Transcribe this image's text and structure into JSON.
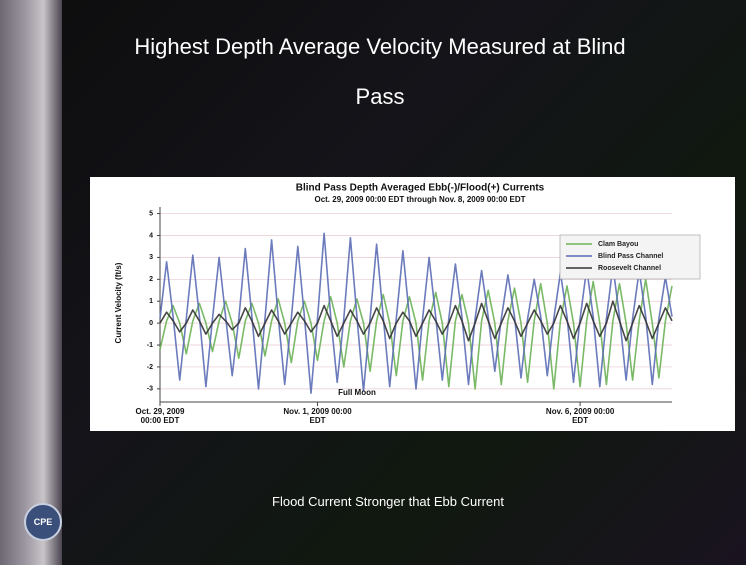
{
  "slide": {
    "title": "Highest Depth Average Velocity Measured at Blind Pass",
    "caption": "Flood  Current Stronger that Ebb Current",
    "logo": "CPE"
  },
  "chart_data": {
    "type": "line",
    "title": "Blind Pass Depth Averaged Ebb(-)/Flood(+) Currents",
    "subtitle": "Oct. 29, 2009 00:00 EDT through Nov. 8, 2009 00:00 EDT",
    "y_label": "Current Velocity (ft/s)",
    "annotation": "Full Moon",
    "grid": true,
    "legend": "upper right",
    "xlim": [
      0,
      9.75
    ],
    "ylim": [
      -3.6,
      5.3
    ],
    "xticks": [
      {
        "value": 0,
        "label": "Oct. 29, 2009 00:00 EDT"
      },
      {
        "value": 3,
        "label": "Nov. 1, 2009 00:00 EDT"
      },
      {
        "value": 8,
        "label": "Nov. 6, 2009 00:00 EDT"
      }
    ],
    "yticks": [
      -3,
      -2,
      -1,
      0,
      1,
      2,
      3,
      4,
      5
    ],
    "x": [
      0,
      0.125,
      0.25,
      0.375,
      0.5,
      0.625,
      0.75,
      0.875,
      1,
      1.125,
      1.25,
      1.375,
      1.5,
      1.625,
      1.75,
      1.875,
      2,
      2.125,
      2.25,
      2.375,
      2.5,
      2.625,
      2.75,
      2.875,
      3,
      3.125,
      3.25,
      3.375,
      3.5,
      3.625,
      3.75,
      3.875,
      4,
      4.125,
      4.25,
      4.375,
      4.5,
      4.625,
      4.75,
      4.875,
      5,
      5.125,
      5.25,
      5.375,
      5.5,
      5.625,
      5.75,
      5.875,
      6,
      6.125,
      6.25,
      6.375,
      6.5,
      6.625,
      6.75,
      6.875,
      7,
      7.125,
      7.25,
      7.375,
      7.5,
      7.625,
      7.75,
      7.875,
      8,
      8.125,
      8.25,
      8.375,
      8.5,
      8.625,
      8.75,
      8.875,
      9,
      9.125,
      9.25,
      9.375,
      9.5,
      9.625,
      9.75
    ],
    "series": [
      {
        "name": "Clam Bayou",
        "color": "#6cb356",
        "values": [
          -1.2,
          0.1,
          0.8,
          0,
          -1.4,
          0.1,
          0.9,
          0,
          -1.3,
          0.1,
          1.0,
          0,
          -1.6,
          0.1,
          0.9,
          0,
          -1.5,
          0.1,
          1.1,
          0,
          -1.8,
          0.1,
          1.0,
          0,
          -1.7,
          0.1,
          1.2,
          0,
          -2.0,
          0.1,
          1.1,
          0,
          -2.2,
          0.1,
          1.3,
          0,
          -2.4,
          0.1,
          1.2,
          0,
          -2.6,
          0.1,
          1.4,
          0,
          -2.9,
          0.1,
          1.3,
          0,
          -3.0,
          0.1,
          1.5,
          0,
          -2.8,
          0.1,
          1.6,
          0,
          -2.7,
          0.1,
          1.8,
          0,
          -3.0,
          0.1,
          1.7,
          0,
          -2.9,
          0.1,
          1.9,
          0,
          -2.8,
          0.1,
          1.8,
          0,
          -2.6,
          0.1,
          2.0,
          0,
          -2.5,
          0.1,
          1.7
        ]
      },
      {
        "name": "Blind Pass Channel",
        "color": "#5b6db5",
        "values": [
          0.2,
          2.8,
          0.3,
          -2.6,
          0.2,
          3.1,
          0.3,
          -2.9,
          0.2,
          3.0,
          0.3,
          -2.4,
          0.2,
          3.4,
          0.3,
          -3.0,
          0.2,
          3.8,
          0.3,
          -2.8,
          0.2,
          3.5,
          0.3,
          -3.2,
          0.2,
          4.1,
          0.3,
          -2.7,
          0.2,
          3.9,
          0.3,
          -3.1,
          0.2,
          3.6,
          0.3,
          -2.9,
          0.2,
          3.3,
          0.3,
          -3.0,
          0.2,
          3.0,
          0.3,
          -2.6,
          0.2,
          2.7,
          0.3,
          -2.8,
          0.2,
          2.4,
          0.3,
          -2.2,
          0.2,
          2.2,
          0.3,
          -2.5,
          0.2,
          2.0,
          0.3,
          -2.4,
          0.2,
          2.3,
          0.3,
          -2.7,
          0.2,
          2.5,
          0.3,
          -2.9,
          0.2,
          2.6,
          0.3,
          -2.6,
          0.2,
          2.4,
          0.3,
          -2.8,
          0.2,
          2.1,
          0.3
        ]
      },
      {
        "name": "Roosevelt Channel",
        "color": "#333333",
        "values": [
          0,
          0.5,
          0.1,
          -0.4,
          0,
          0.6,
          0.1,
          -0.5,
          0,
          0.4,
          0.1,
          -0.3,
          0,
          0.7,
          0.1,
          -0.6,
          0,
          0.6,
          0.1,
          -0.5,
          0,
          0.5,
          0.1,
          -0.4,
          0,
          0.8,
          0.1,
          -0.6,
          0,
          0.6,
          0.1,
          -0.5,
          0,
          0.7,
          0.1,
          -0.7,
          0,
          0.5,
          0.1,
          -0.6,
          0,
          0.6,
          0.1,
          -0.5,
          0,
          0.8,
          0.1,
          -0.8,
          0,
          0.9,
          0.1,
          -0.7,
          0,
          0.7,
          0.1,
          -0.6,
          0,
          0.6,
          0.1,
          -0.5,
          0,
          0.8,
          0.1,
          -0.7,
          0,
          0.9,
          0.1,
          -0.6,
          0,
          1.0,
          0.1,
          -0.8,
          0,
          0.8,
          0.1,
          -0.7,
          0,
          0.7,
          0.1
        ]
      }
    ]
  }
}
